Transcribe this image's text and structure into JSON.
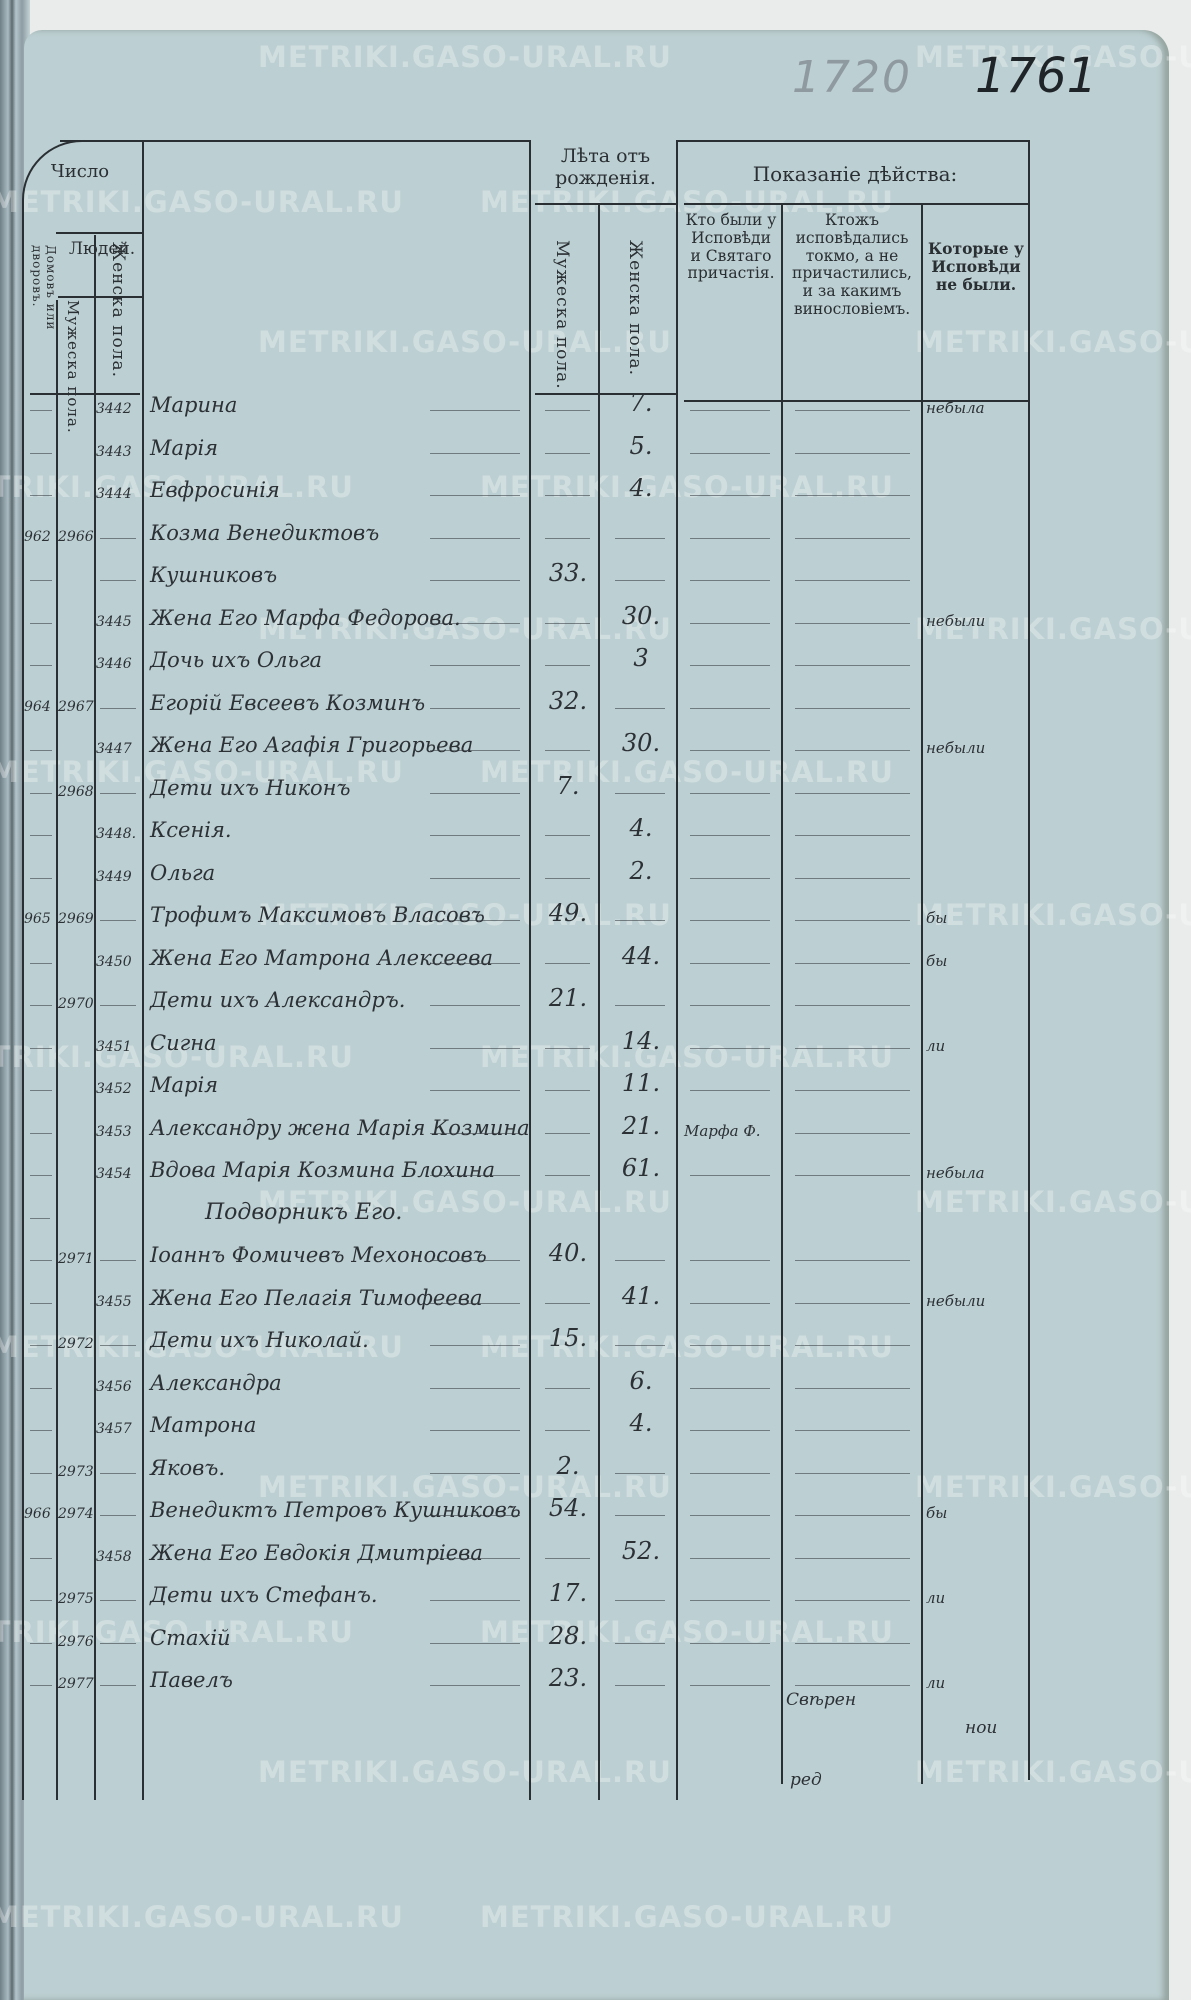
{
  "page_numbers": {
    "pencil": "1720",
    "ink": "1761"
  },
  "watermark": "METRIKI.GASO-URAL.RU",
  "header": {
    "number_title": "Число",
    "people_title": "Людей.",
    "houses": "Домовъ или дворовъ.",
    "male": "Мужеска пола.",
    "female": "Женска пола.",
    "age_title": "Лѣта отъ рожденія.",
    "age_male": "Мужеска пола.",
    "age_female": "Женска пола.",
    "action_title": "Показаніе дѣйства:",
    "col_confessed_communed": "Кто были у Исповѣди и Святаго причастія.",
    "col_confessed_only": "Ктожъ исповѣдались токмо, а не причастились, и за какимъ винословіемъ.",
    "col_absent": "Которые у Исповѣди не были."
  },
  "rows": [
    {
      "house": "",
      "male_no": "",
      "female_no": "3442",
      "name": "Марина",
      "male_age": "",
      "female_age": "7.",
      "c1": "",
      "c3": "небыла"
    },
    {
      "house": "",
      "male_no": "",
      "female_no": "3443",
      "name": "Марія",
      "male_age": "",
      "female_age": "5.",
      "c1": "",
      "c3": ""
    },
    {
      "house": "",
      "male_no": "",
      "female_no": "3444",
      "name": "Евфросинія",
      "male_age": "",
      "female_age": "4.",
      "c1": "",
      "c3": ""
    },
    {
      "house": "962",
      "male_no": "2966",
      "female_no": "",
      "name": "Козма Венедиктовъ",
      "male_age": "",
      "female_age": "",
      "c1": "",
      "c3": ""
    },
    {
      "house": "",
      "male_no": "",
      "female_no": "",
      "name": "Кушниковъ",
      "male_age": "33.",
      "female_age": "",
      "c1": "",
      "c3": ""
    },
    {
      "house": "",
      "male_no": "",
      "female_no": "3445",
      "name": "Жена Его Марфа Федорова.",
      "male_age": "",
      "female_age": "30.",
      "c1": "",
      "c3": "небыли"
    },
    {
      "house": "",
      "male_no": "",
      "female_no": "3446",
      "name": "Дочь ихъ Ольга",
      "male_age": "",
      "female_age": "3",
      "c1": "",
      "c3": ""
    },
    {
      "house": "964",
      "male_no": "2967",
      "female_no": "",
      "name": "Егорій Евсеевъ Козминъ",
      "male_age": "32.",
      "female_age": "",
      "c1": "",
      "c3": ""
    },
    {
      "house": "",
      "male_no": "",
      "female_no": "3447",
      "name": "Жена Его Агафія Григорьева",
      "male_age": "",
      "female_age": "30.",
      "c1": "",
      "c3": "небыли"
    },
    {
      "house": "",
      "male_no": "2968",
      "female_no": "",
      "name": "Дети ихъ Никонъ",
      "male_age": "7.",
      "female_age": "",
      "c1": "",
      "c3": ""
    },
    {
      "house": "",
      "male_no": "",
      "female_no": "3448.",
      "name": "Ксенія.",
      "male_age": "",
      "female_age": "4.",
      "c1": "",
      "c3": ""
    },
    {
      "house": "",
      "male_no": "",
      "female_no": "3449",
      "name": "Ольга",
      "male_age": "",
      "female_age": "2.",
      "c1": "",
      "c3": ""
    },
    {
      "house": "965",
      "male_no": "2969",
      "female_no": "",
      "name": "Трофимъ Максимовъ Власовъ",
      "male_age": "49.",
      "female_age": "",
      "c1": "",
      "c3": "бы"
    },
    {
      "house": "",
      "male_no": "",
      "female_no": "3450",
      "name": "Жена Его Матрона Алексеева",
      "male_age": "",
      "female_age": "44.",
      "c1": "",
      "c3": "бы"
    },
    {
      "house": "",
      "male_no": "2970",
      "female_no": "",
      "name": "Дети ихъ Александръ.",
      "male_age": "21.",
      "female_age": "",
      "c1": "",
      "c3": ""
    },
    {
      "house": "",
      "male_no": "",
      "female_no": "3451",
      "name": "Сигна",
      "male_age": "",
      "female_age": "14.",
      "c1": "",
      "c3": "ли"
    },
    {
      "house": "",
      "male_no": "",
      "female_no": "3452",
      "name": "Марія",
      "male_age": "",
      "female_age": "11.",
      "c1": "",
      "c3": ""
    },
    {
      "house": "",
      "male_no": "",
      "female_no": "3453",
      "name": "Александру жена Марія Козмина",
      "male_age": "",
      "female_age": "21.",
      "c1": "Марфа Ф.",
      "c3": ""
    },
    {
      "house": "",
      "male_no": "",
      "female_no": "3454",
      "name": "Вдова Марія Козмина Блохина",
      "male_age": "",
      "female_age": "61.",
      "c1": "",
      "c3": "небыла"
    },
    {
      "house": "",
      "male_no": "",
      "female_no": "",
      "name": "Подворникъ Его.",
      "male_age": "",
      "female_age": "",
      "c1": "",
      "c3": "",
      "heading": true
    },
    {
      "house": "",
      "male_no": "2971",
      "female_no": "",
      "name": "Іоаннъ Фомичевъ Мехоносовъ",
      "male_age": "40.",
      "female_age": "",
      "c1": "",
      "c3": ""
    },
    {
      "house": "",
      "male_no": "",
      "female_no": "3455",
      "name": "Жена Его Пелагія Тимофеева",
      "male_age": "",
      "female_age": "41.",
      "c1": "",
      "c3": "небыли"
    },
    {
      "house": "",
      "male_no": "2972",
      "female_no": "",
      "name": "Дети ихъ Николай.",
      "male_age": "15.",
      "female_age": "",
      "c1": "",
      "c3": ""
    },
    {
      "house": "",
      "male_no": "",
      "female_no": "3456",
      "name": "Александра",
      "male_age": "",
      "female_age": "6.",
      "c1": "",
      "c3": ""
    },
    {
      "house": "",
      "male_no": "",
      "female_no": "3457",
      "name": "Матрона",
      "male_age": "",
      "female_age": "4.",
      "c1": "",
      "c3": ""
    },
    {
      "house": "",
      "male_no": "2973",
      "female_no": "",
      "name": "Яковъ.",
      "male_age": "2.",
      "female_age": "",
      "c1": "",
      "c3": ""
    },
    {
      "house": "966",
      "male_no": "2974",
      "female_no": "",
      "name": "Венедиктъ Петровъ Кушниковъ",
      "male_age": "54.",
      "female_age": "",
      "c1": "",
      "c3": "бы"
    },
    {
      "house": "",
      "male_no": "",
      "female_no": "3458",
      "name": "Жена Его Евдокія Дмитріева",
      "male_age": "",
      "female_age": "52.",
      "c1": "",
      "c3": ""
    },
    {
      "house": "",
      "male_no": "2975",
      "female_no": "",
      "name": "Дети ихъ Стефанъ.",
      "male_age": "17.",
      "female_age": "",
      "c1": "",
      "c3": "ли"
    },
    {
      "house": "",
      "male_no": "2976",
      "female_no": "",
      "name": "Стахій",
      "male_age": "28.",
      "female_age": "",
      "c1": "",
      "c3": ""
    },
    {
      "house": "",
      "male_no": "2977",
      "female_no": "",
      "name": "Павелъ",
      "male_age": "23.",
      "female_age": "",
      "c1": "",
      "c3": "ли"
    }
  ],
  "footer": {
    "col2_note": "Свѣрен",
    "col3_note": "нои",
    "page_mark": "ред"
  }
}
